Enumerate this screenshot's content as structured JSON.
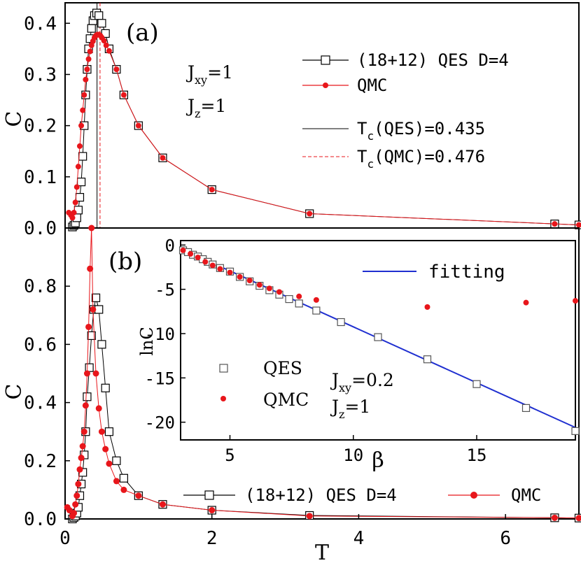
{
  "chart_data": [
    {
      "type": "line",
      "panel_label": "(a)",
      "xlim": [
        0,
        7
      ],
      "ylim": [
        0,
        0.44
      ],
      "ylabel": "C",
      "yticks": [
        "0.0",
        "0.1",
        "0.2",
        "0.3",
        "0.4"
      ],
      "yticks_values": [
        0,
        0.1,
        0.2,
        0.3,
        0.4
      ],
      "annotations": {
        "jxy_main": "J",
        "jxy_sub": "xy",
        "jxy_val": "=1",
        "jz_main": "J",
        "jz_sub": "z",
        "jz_val": "=1"
      },
      "legend": {
        "qes": "(18+12) QES D=4",
        "qmc": "QMC",
        "tc_qes_main": "T",
        "tc_qes_sub": "c",
        "tc_qes_val": "(QES)=0.435",
        "tc_qmc_main": "T",
        "tc_qmc_sub": "c",
        "tc_qmc_val": "(QMC)=0.476"
      },
      "vlines": {
        "tc_qes": 0.435,
        "tc_qmc": 0.476
      },
      "series": [
        {
          "key": "qes",
          "color": "#000000",
          "marker": "square",
          "x": [
            0.1,
            0.12,
            0.14,
            0.16,
            0.18,
            0.2,
            0.22,
            0.24,
            0.26,
            0.28,
            0.3,
            0.32,
            0.34,
            0.36,
            0.38,
            0.4,
            0.43,
            0.46,
            0.5,
            0.55,
            0.6,
            0.7,
            0.8,
            1.0,
            1.33,
            2.0,
            3.33,
            6.67,
            7.0
          ],
          "y": [
            0.002,
            0.005,
            0.01,
            0.02,
            0.035,
            0.06,
            0.09,
            0.14,
            0.2,
            0.26,
            0.31,
            0.35,
            0.37,
            0.39,
            0.405,
            0.415,
            0.42,
            0.415,
            0.4,
            0.38,
            0.35,
            0.31,
            0.26,
            0.2,
            0.137,
            0.075,
            0.028,
            0.008,
            0.006
          ]
        },
        {
          "key": "qmc",
          "color": "#e8161b",
          "marker": "dot",
          "x": [
            0.05,
            0.08,
            0.1,
            0.12,
            0.14,
            0.16,
            0.18,
            0.2,
            0.22,
            0.24,
            0.26,
            0.28,
            0.3,
            0.32,
            0.34,
            0.36,
            0.38,
            0.4,
            0.42,
            0.44,
            0.46,
            0.48,
            0.5,
            0.53,
            0.56,
            0.6,
            0.7,
            0.8,
            1.0,
            1.33,
            2.0,
            3.33,
            6.67,
            7.0
          ],
          "y": [
            0.03,
            0.025,
            0.02,
            0.03,
            0.05,
            0.08,
            0.12,
            0.16,
            0.2,
            0.23,
            0.26,
            0.29,
            0.31,
            0.33,
            0.345,
            0.357,
            0.365,
            0.372,
            0.376,
            0.378,
            0.378,
            0.376,
            0.372,
            0.366,
            0.357,
            0.346,
            0.31,
            0.26,
            0.2,
            0.137,
            0.075,
            0.028,
            0.008,
            0.006
          ]
        }
      ]
    },
    {
      "type": "line",
      "panel_label": "(b)",
      "xlim": [
        0,
        7
      ],
      "ylim": [
        0,
        1.0
      ],
      "xlabel": "T",
      "ylabel": "C",
      "xticks": [
        "0",
        "2",
        "4",
        "6"
      ],
      "xticks_values": [
        0,
        2,
        4,
        6
      ],
      "yticks": [
        "0.0",
        "0.2",
        "0.4",
        "0.6",
        "0.8"
      ],
      "yticks_values": [
        0,
        0.2,
        0.4,
        0.6,
        0.8
      ],
      "legend": {
        "qes": "(18+12) QES D=4",
        "qmc": "QMC"
      },
      "series": [
        {
          "key": "qes",
          "color": "#000000",
          "marker": "square",
          "x": [
            0.1,
            0.12,
            0.14,
            0.16,
            0.18,
            0.2,
            0.22,
            0.24,
            0.26,
            0.28,
            0.3,
            0.33,
            0.36,
            0.39,
            0.42,
            0.46,
            0.5,
            0.55,
            0.6,
            0.7,
            0.8,
            1.0,
            1.33,
            2.0,
            3.33,
            6.67,
            7.0
          ],
          "y": [
            0.0,
            0.005,
            0.01,
            0.02,
            0.04,
            0.08,
            0.12,
            0.16,
            0.22,
            0.3,
            0.42,
            0.52,
            0.63,
            0.72,
            0.76,
            0.72,
            0.6,
            0.45,
            0.3,
            0.2,
            0.14,
            0.08,
            0.05,
            0.03,
            0.012,
            0.004,
            0.003
          ]
        },
        {
          "key": "qmc",
          "color": "#e8161b",
          "marker": "dot",
          "x": [
            0.03,
            0.06,
            0.1,
            0.12,
            0.14,
            0.16,
            0.18,
            0.2,
            0.22,
            0.24,
            0.26,
            0.28,
            0.3,
            0.32,
            0.34,
            0.36,
            0.38,
            0.42,
            0.46,
            0.5,
            0.55,
            0.6,
            0.7,
            0.8,
            1.0,
            1.33,
            2.0,
            3.33,
            6.67,
            7.0
          ],
          "y": [
            0.04,
            0.03,
            0.01,
            0.02,
            0.05,
            0.08,
            0.12,
            0.17,
            0.21,
            0.25,
            0.3,
            0.39,
            0.5,
            0.66,
            0.86,
            1.0,
            0.72,
            0.5,
            0.38,
            0.3,
            0.24,
            0.19,
            0.13,
            0.1,
            0.08,
            0.05,
            0.03,
            0.01,
            0.004,
            0.003
          ]
        }
      ]
    },
    {
      "type": "scatter",
      "inset": true,
      "xlim": [
        3,
        19
      ],
      "ylim": [
        -22,
        0.5
      ],
      "xlabel": "β",
      "ylabel": "lnC",
      "xticks": [
        "5",
        "10",
        "15"
      ],
      "xticks_values": [
        5,
        10,
        15
      ],
      "yticks": [
        "0",
        "-5",
        "-10",
        "-15",
        "-20"
      ],
      "yticks_values": [
        0,
        -5,
        -10,
        -15,
        -20
      ],
      "legend": {
        "fitting": "fitting",
        "qes": "QES",
        "qmc": "QMC"
      },
      "annotations": {
        "jxy_main": "J",
        "jxy_sub": "xy",
        "jxy_val": "=0.2",
        "jz_main": "J",
        "jz_sub": "z",
        "jz_val": "=1"
      },
      "fit_line": {
        "color": "#1f2fd0",
        "x": [
          3,
          19
        ],
        "y": [
          -0.4,
          -20.6
        ]
      },
      "series": [
        {
          "key": "qes",
          "color": "#555555",
          "marker": "square",
          "x": [
            3.1,
            3.3,
            3.5,
            3.7,
            3.9,
            4.1,
            4.3,
            4.6,
            5.0,
            5.4,
            5.8,
            6.2,
            6.6,
            7.0,
            7.4,
            7.8,
            8.5,
            9.5,
            11.0,
            13.0,
            15.0,
            17.0,
            19.0
          ],
          "y": [
            -0.6,
            -0.8,
            -1.1,
            -1.3,
            -1.6,
            -1.9,
            -2.2,
            -2.6,
            -3.0,
            -3.6,
            -4.1,
            -4.6,
            -5.1,
            -5.6,
            -6.1,
            -6.6,
            -7.4,
            -8.7,
            -10.4,
            -12.9,
            -15.7,
            -18.4,
            -21.0
          ]
        },
        {
          "key": "qmc",
          "color": "#e8161b",
          "marker": "dot",
          "x": [
            3.1,
            3.4,
            3.7,
            4.0,
            4.3,
            4.6,
            5.0,
            5.4,
            5.8,
            6.2,
            6.6,
            7.0,
            7.8,
            8.5,
            13.0,
            17.0,
            19.0
          ],
          "y": [
            -0.6,
            -1.0,
            -1.4,
            -1.9,
            -2.3,
            -2.7,
            -3.1,
            -3.6,
            -4.0,
            -4.5,
            -4.9,
            -5.3,
            -5.8,
            -6.2,
            -7.0,
            -6.5,
            -6.3
          ]
        }
      ]
    }
  ]
}
